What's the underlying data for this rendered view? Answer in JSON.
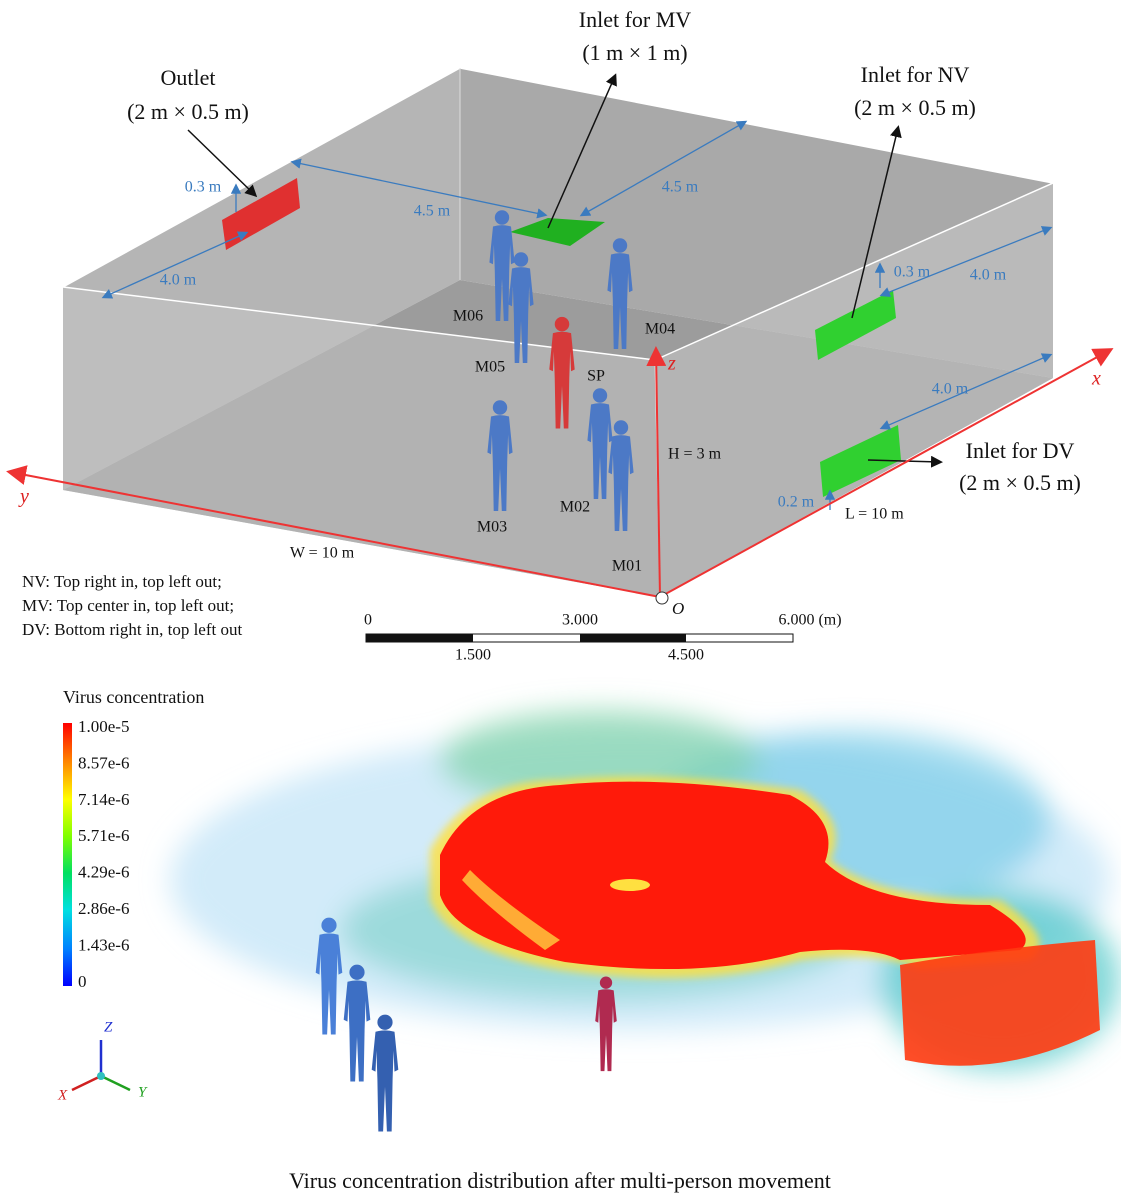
{
  "diagram": {
    "callouts": [
      {
        "title": "Outlet",
        "size": "(2 m × 0.5 m)"
      },
      {
        "title": "Inlet for MV",
        "size": "(1 m × 1 m)"
      },
      {
        "title": "Inlet for NV",
        "size": "(2 m × 0.5 m)"
      },
      {
        "title": "Inlet for DV",
        "size": "(2 m × 0.5 m)"
      }
    ],
    "dimensions": [
      "0.3 m",
      "4.5 m",
      "4.5 m",
      "4.0 m",
      "0.3 m",
      "4.0 m",
      "4.0 m",
      "0.2 m"
    ],
    "occupants": [
      "M06",
      "M05",
      "M04",
      "SP",
      "M03",
      "M02",
      "M01"
    ],
    "axes": {
      "x": "x",
      "y": "y",
      "z": "z",
      "origin": "O"
    },
    "room": {
      "height": "H = 3 m",
      "length": "L = 10 m",
      "width": "W = 10 m"
    },
    "notes": [
      "NV: Top right in, top left out;",
      "MV: Top center in, top left out;",
      "DV: Bottom right in, top left out"
    ]
  },
  "scale_bar": {
    "top_labels": [
      "0",
      "3.000",
      "6.000 (m)"
    ],
    "bottom_labels": [
      "1.500",
      "4.500"
    ]
  },
  "colorbar": {
    "title": "Virus concentration",
    "labels": [
      "1.00e-5",
      "8.57e-6",
      "7.14e-6",
      "5.71e-6",
      "4.29e-6",
      "2.86e-6",
      "1.43e-6",
      "0"
    ]
  },
  "axis_triad": {
    "z": "Z",
    "x": "X",
    "y": "Y"
  },
  "caption": "Virus concentration distribution after multi-person movement"
}
